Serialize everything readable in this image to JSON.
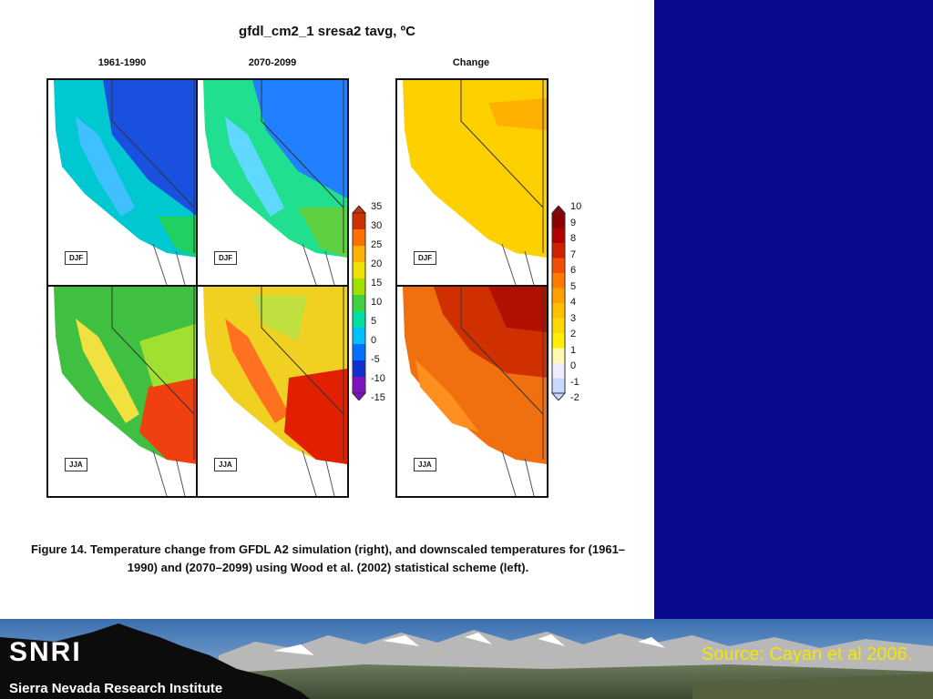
{
  "figure": {
    "title": "gfdl_cm2_1 sresa2 tavg, ºC",
    "columns": [
      "1961-1990",
      "2070-2099",
      "Change"
    ],
    "seasons": [
      "DJF",
      "JJA"
    ],
    "temp_scale": {
      "ticks": [
        "35",
        "30",
        "25",
        "20",
        "15",
        "10",
        "5",
        "0",
        "-5",
        "-10",
        "-15"
      ],
      "colors": [
        "#d03000",
        "#ff7000",
        "#ffb000",
        "#f0e000",
        "#a0e000",
        "#40d040",
        "#00e0a0",
        "#00c0ff",
        "#0070ff",
        "#1030d0",
        "#8010c0"
      ]
    },
    "change_scale": {
      "ticks": [
        "10",
        "9",
        "8",
        "7",
        "6",
        "5",
        "4",
        "3",
        "2",
        "1",
        "0",
        "-1",
        "-2"
      ],
      "colors": [
        "#8a0000",
        "#b00000",
        "#d02000",
        "#f05000",
        "#ff7a00",
        "#ffa000",
        "#ffc000",
        "#ffd800",
        "#fff000",
        "#fffab0",
        "#eeeeff",
        "#c8d8ff"
      ]
    },
    "caption": "Figure 14.  Temperature change from GFDL A2 simulation (right), and downscaled temperatures for (1961–1990) and (2070–2099) using Wood et al. (2002) statistical scheme (left)."
  },
  "banner": {
    "logo": "SNRI",
    "institute": "Sierra Nevada Research Institute",
    "source": "Source: Cayan et al 2006."
  }
}
